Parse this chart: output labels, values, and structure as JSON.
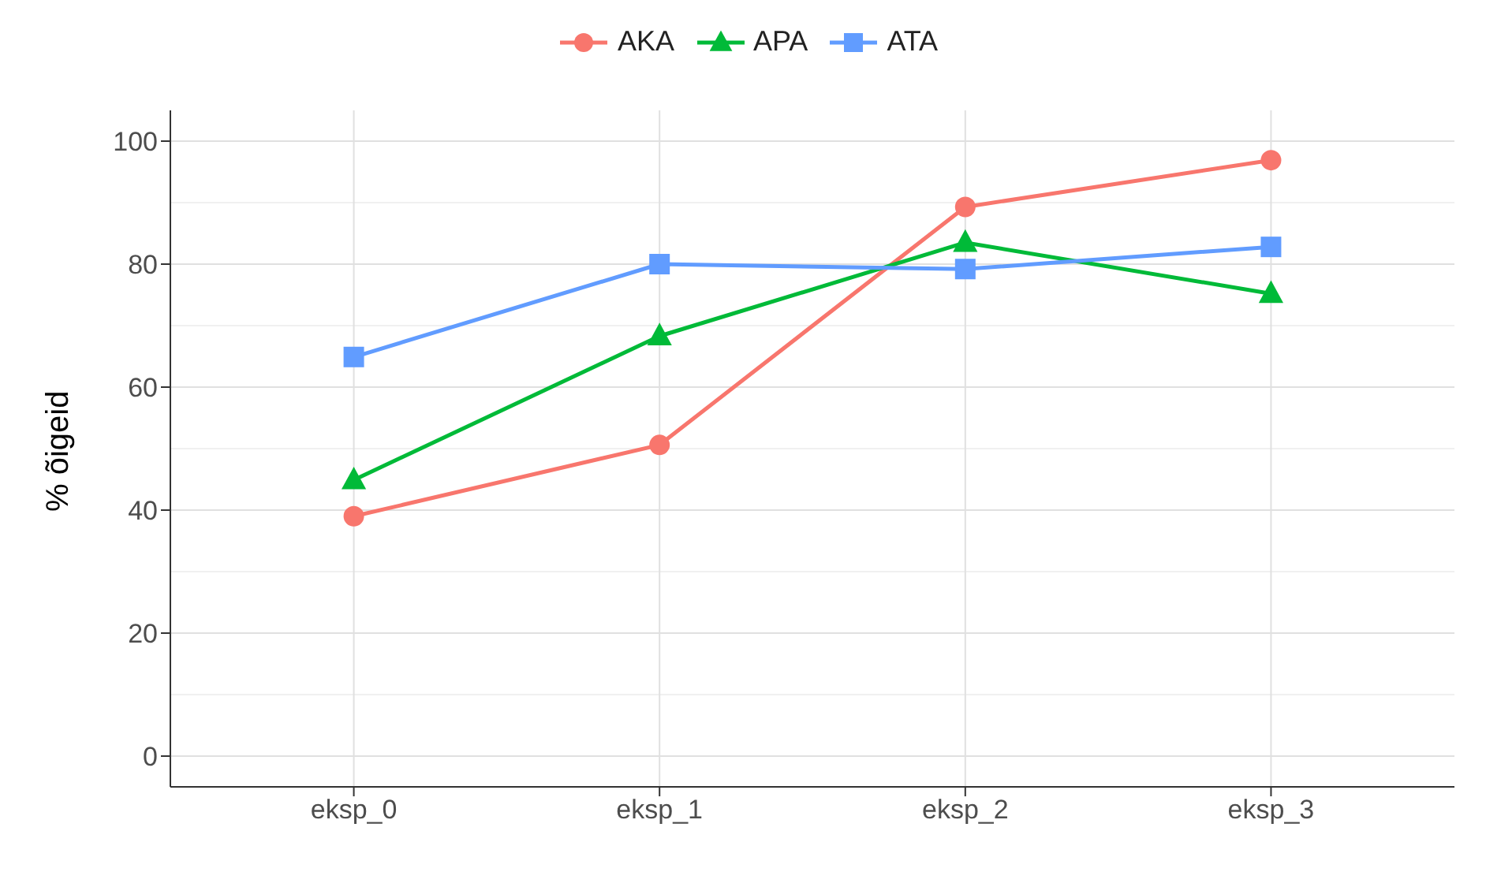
{
  "chart_data": {
    "type": "line",
    "ylabel": "% õigeid",
    "categories": [
      "eksp_0",
      "eksp_1",
      "eksp_2",
      "eksp_3"
    ],
    "series": [
      {
        "name": "AKA",
        "color": "#f8766d",
        "marker": "circle",
        "values": [
          39,
          50.6,
          89.3,
          96.9
        ]
      },
      {
        "name": "APA",
        "color": "#00ba38",
        "marker": "triangle",
        "values": [
          44.9,
          68.3,
          83.5,
          75.2
        ]
      },
      {
        "name": "ATA",
        "color": "#619cff",
        "marker": "square",
        "values": [
          64.9,
          80,
          79.2,
          82.8
        ]
      }
    ],
    "ylim": [
      -5,
      105
    ],
    "yticks": [
      0,
      20,
      40,
      60,
      80,
      100
    ],
    "grid": true,
    "legend": "top",
    "line_style": "solid"
  }
}
